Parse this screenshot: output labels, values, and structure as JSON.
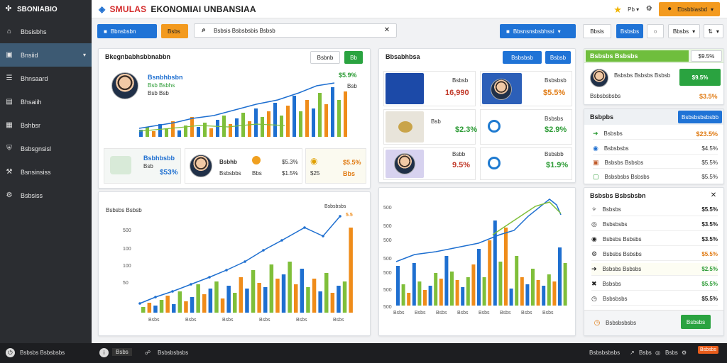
{
  "sidebar": {
    "brand": "SBONIABIO",
    "items": [
      {
        "label": "Bbsisbhs",
        "icon": "home-icon"
      },
      {
        "label": "Bnsiid",
        "icon": "dashboard-icon"
      },
      {
        "label": "Bhnsaard",
        "icon": "list-icon"
      },
      {
        "label": "Bhsaiih",
        "icon": "building-icon"
      },
      {
        "label": "Bshbsr",
        "icon": "chart-icon"
      },
      {
        "label": "Bsbsgnsisl",
        "icon": "shield-icon"
      },
      {
        "label": "Bsnsinsiss",
        "icon": "wrench-icon"
      },
      {
        "label": "Bsbsiss",
        "icon": "settings-icon"
      }
    ]
  },
  "header": {
    "title_accent": "SMULAS",
    "title_rest": "EKONOMIAI UNBANSIAA",
    "dropdown_label": "Pb",
    "action_label": "Ebsbbiasbd"
  },
  "toolbar": {
    "button1": "Bbnsbsbn",
    "button2": "Bsbs",
    "search_value": "Bsbsis Bsbsbsbis Bsbsb",
    "filter_button": "Bbsnsnsbsbhssi",
    "btn_a": "Bbsis",
    "btn_b": "Bsbsbs",
    "btn_c": "Bbsbs"
  },
  "panel_main": {
    "title": "Bkegnbabhsbbnabbn",
    "btn_white": "Bsbnb",
    "btn_green": "Bb",
    "profile_name": "Bsnbhbsbn",
    "profile_sub1": "Bsb  Bsbhs",
    "profile_sub2": "Bsb  Bsb",
    "top_value": "$5.9%",
    "mini_value": "Bsb",
    "cards": [
      {
        "title": "Bsbhbsbb",
        "sub": "Bsb",
        "value": "$53%"
      },
      {
        "title": "Bsbhb",
        "sub": "Bsbsbbs",
        "v1": "$5.3%",
        "v2": "$1.5%",
        "a": "Bbs",
        "b": "5.5%"
      },
      {
        "title": "Bsb",
        "sub": "Bbs",
        "v1": "$5.5%",
        "v2": "$25",
        "a": "Bsb"
      }
    ]
  },
  "panel_mid": {
    "title": "Bbsabhbsa",
    "btn1": "Bsbsbsb",
    "btn2": "Bsbsb",
    "items": [
      {
        "label": "Bsbsb",
        "value": "16,990",
        "color": "red"
      },
      {
        "label": "Bsbsbsb",
        "value": "$5.5%",
        "color": "orange"
      },
      {
        "label": "Bsb",
        "value": "$2.3%",
        "color": "green"
      },
      {
        "label": "Bsbsbs",
        "value": "$2.9%",
        "color": "green"
      },
      {
        "label": "Bsbb",
        "value": "9.5%",
        "color": "red"
      },
      {
        "label": "Bsbsbb",
        "value": "$1.9%",
        "color": "green"
      }
    ]
  },
  "panel_right": {
    "title": "Bsbsbs Bsbsbs",
    "action": "$9.5%",
    "name": "Bsbsbs Bsbsbs Bsbsb",
    "sub": "Bsbsbsbsbs",
    "value": "$3.5%",
    "section2_title": "Bsbpbs",
    "section2_btn": "Bsbsbsbsbsbb",
    "rows": [
      {
        "label": "Bsbsbs",
        "value": "$23.5%"
      },
      {
        "label": "Bsbsbsbs",
        "value": "$4.5%"
      },
      {
        "label": "Bsbsbs Bsbsbs",
        "value": "$5.5%"
      },
      {
        "label": "Bsbsbsbs Bsbsbs",
        "value": "$5.5%"
      }
    ]
  },
  "panel_list": {
    "title": "Bsbsbs Bsbsbsbn",
    "rows": [
      {
        "label": "Bsbsbs",
        "value": "$5.5%",
        "color": "#222"
      },
      {
        "label": "Bsbsbsbs",
        "value": "$3.5%",
        "color": "#222"
      },
      {
        "label": "Bsbsbs Bsbsbs",
        "value": "$3.5%",
        "color": "#222"
      },
      {
        "label": "Bsbsbs Bsbsbs",
        "value": "$5.5%",
        "color": "#e07a12"
      },
      {
        "label": "Bsbsbs Bsbsbs",
        "value": "$2.5%",
        "color": "#2c9b35"
      },
      {
        "label": "Bsbsbs",
        "value": "$5.5%",
        "color": "#2c9b35"
      },
      {
        "label": "Bsbsbsbs",
        "value": "$5.5%",
        "color": "#222"
      }
    ],
    "footer_label": "Bsbsbsbsbs",
    "footer_btn": "Bsbsbs"
  },
  "chart_left": {
    "label_top": "Bsbsbs Bsbsb",
    "label_right": "Bsbsbsbs",
    "label_right_val": "5.5",
    "y_ticks": [
      "500",
      "100",
      "100",
      "50"
    ],
    "x_ticks": [
      "Bsbs",
      "Bsbs",
      "Bsbs",
      "Bsbs",
      "Bsbs",
      "Bsbs"
    ]
  },
  "chart_right": {
    "y_ticks": [
      "500",
      "500",
      "500",
      "500",
      "500",
      "500",
      "500"
    ],
    "x_ticks": [
      "Bsbs",
      "Bsbs",
      "Bsbs",
      "Bsbs",
      "Bsbs",
      "Bsbs",
      "Bsbs",
      "Bsbs"
    ]
  },
  "footer": {
    "left": "Bsbsbs Bsbsbsbs",
    "mid1": "Bsbs",
    "mid2": "Bsbsbsbsbs",
    "right1": "Bsbsbsbsbs",
    "right2": "Bsbs",
    "right3": "Bsbs",
    "badge": "Bsbsbs"
  },
  "colors": {
    "sidebar": "#2b2d31",
    "accent_blue": "#1f73d6",
    "accent_orange": "#f39a1e",
    "accent_green": "#2aa340",
    "chart_blue": "#1e6fd0",
    "chart_green": "#7fbf3a",
    "chart_orange": "#ef8c1a"
  }
}
